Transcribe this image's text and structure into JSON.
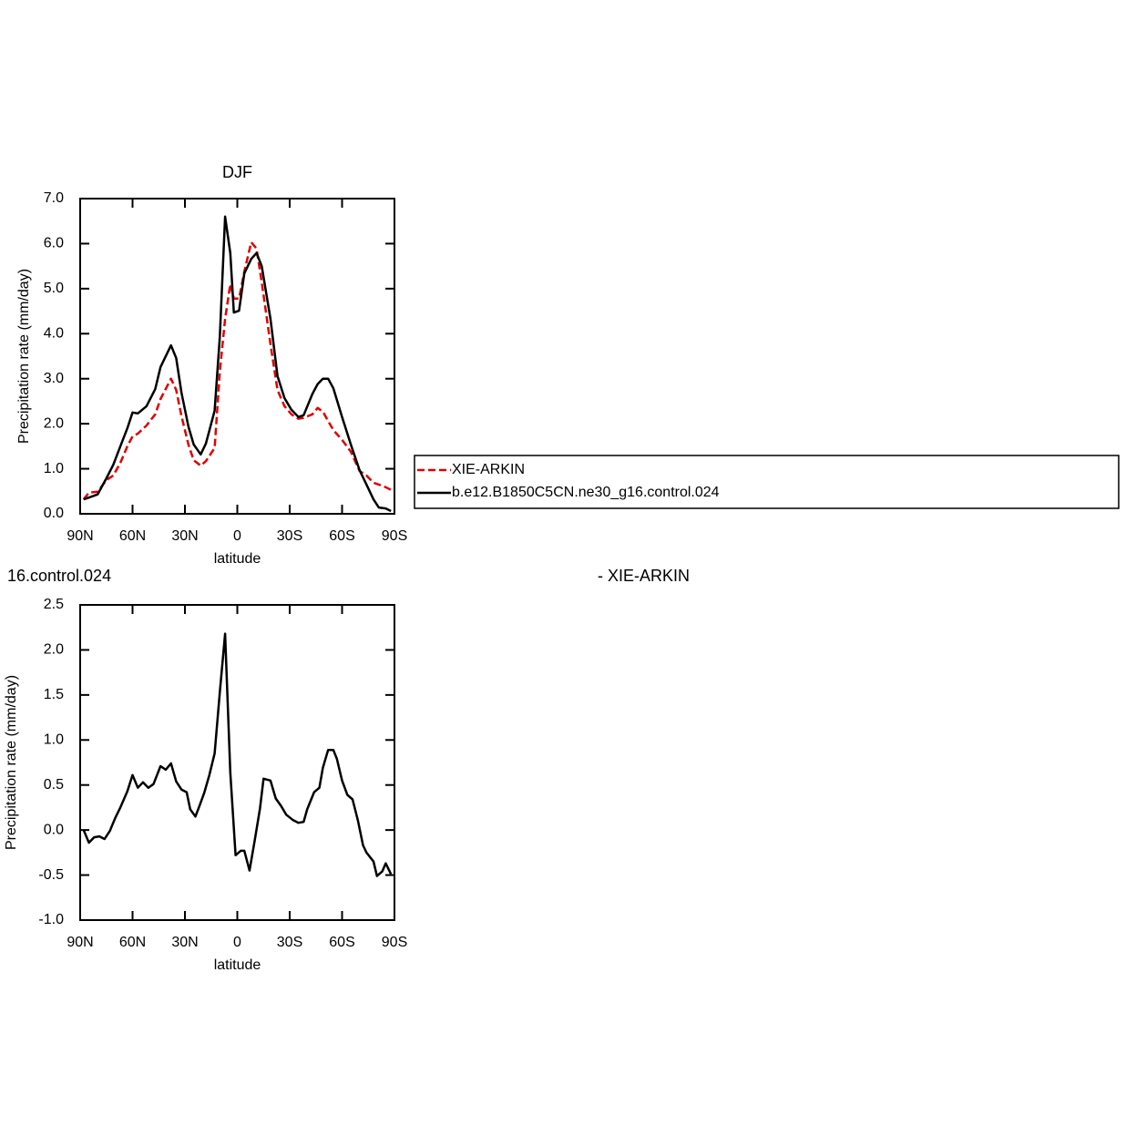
{
  "chart_data": [
    {
      "type": "line",
      "title": "DJF",
      "xlabel": "latitude",
      "ylabel": "Precipitation rate (mm/day)",
      "x": [
        88,
        85,
        80,
        75,
        71,
        67,
        63,
        60,
        57,
        52,
        47,
        44,
        38,
        35,
        32,
        28,
        25,
        21,
        18,
        13,
        10,
        7,
        4,
        2,
        -1,
        -4,
        -8,
        -11,
        -14,
        -19,
        -23,
        -27,
        -31,
        -35,
        -38,
        -43,
        -46,
        -49,
        -52,
        -55,
        -60,
        -65,
        -70,
        -74,
        -78,
        -81,
        -85,
        -88
      ],
      "series": [
        {
          "name": "XIE-ARKIN",
          "color": "#e00000",
          "dash": true,
          "values": [
            0.32,
            0.47,
            0.49,
            0.75,
            0.85,
            1.13,
            1.5,
            1.72,
            1.78,
            1.96,
            2.21,
            2.55,
            3.0,
            2.75,
            2.17,
            1.54,
            1.19,
            1.07,
            1.17,
            1.46,
            3.16,
            4.33,
            5.1,
            4.78,
            4.78,
            5.38,
            6.03,
            5.89,
            5.14,
            3.77,
            2.75,
            2.39,
            2.21,
            2.11,
            2.13,
            2.21,
            2.35,
            2.27,
            2.06,
            1.86,
            1.64,
            1.38,
            0.95,
            0.85,
            0.69,
            0.65,
            0.59,
            0.53
          ]
        },
        {
          "name": "b.e12.B1850C5CN.ne30_g16.control.024",
          "color": "#000000",
          "dash": false,
          "values": [
            0.32,
            0.36,
            0.43,
            0.79,
            1.09,
            1.5,
            1.9,
            2.25,
            2.23,
            2.39,
            2.77,
            3.26,
            3.74,
            3.46,
            2.69,
            1.94,
            1.54,
            1.32,
            1.56,
            2.29,
            3.93,
            6.6,
            5.79,
            4.47,
            4.51,
            5.34,
            5.66,
            5.79,
            5.5,
            4.33,
            3.06,
            2.57,
            2.31,
            2.15,
            2.19,
            2.66,
            2.88,
            3.0,
            3.0,
            2.79,
            2.15,
            1.54,
            0.97,
            0.65,
            0.32,
            0.14,
            0.12,
            0.06
          ]
        }
      ],
      "xlim": [
        90,
        -90
      ],
      "xticks": [
        {
          "value": 90,
          "label": "90N"
        },
        {
          "value": 60,
          "label": "60N"
        },
        {
          "value": 30,
          "label": "30N"
        },
        0,
        {
          "value": -30,
          "label": "30S"
        },
        {
          "value": -60,
          "label": "60S"
        },
        {
          "value": -90,
          "label": "90S"
        }
      ],
      "ylim": [
        0,
        7
      ],
      "yticks": [
        {
          "value": 0,
          "label": "0.0"
        },
        {
          "value": 1,
          "label": "1.0"
        },
        {
          "value": 2,
          "label": "2.0"
        },
        {
          "value": 3,
          "label": "3.0"
        },
        {
          "value": 4,
          "label": "4.0"
        },
        {
          "value": 5,
          "label": "5.0"
        },
        {
          "value": 6,
          "label": "6.0"
        },
        {
          "value": 7,
          "label": "7.0"
        }
      ],
      "legend": "right"
    },
    {
      "type": "line",
      "title_parts": [
        "16.control.024",
        "- XIE-ARKIN"
      ],
      "xlabel": "latitude",
      "ylabel": "Precipitation rate (mm/day)",
      "x": [
        88,
        85,
        82,
        79,
        76,
        73,
        70,
        67,
        63,
        60,
        57,
        54,
        51,
        48,
        44,
        41,
        38,
        35,
        32,
        29,
        27,
        24,
        22,
        19,
        16,
        13,
        10,
        7,
        4,
        1,
        -2,
        -4,
        -7,
        -10,
        -13,
        -15,
        -19,
        -22,
        -25,
        -28,
        -32,
        -35,
        -38,
        -40,
        -44,
        -47,
        -49,
        -52,
        -55,
        -57,
        -60,
        -63,
        -66,
        -69,
        -72,
        -74,
        -78,
        -80,
        -83,
        -85,
        -88
      ],
      "series": [
        {
          "color": "#000000",
          "dash": false,
          "values": [
            0.0,
            -0.14,
            -0.08,
            -0.07,
            -0.1,
            -0.01,
            0.13,
            0.25,
            0.43,
            0.61,
            0.47,
            0.53,
            0.47,
            0.51,
            0.71,
            0.67,
            0.74,
            0.54,
            0.45,
            0.42,
            0.23,
            0.15,
            0.25,
            0.41,
            0.61,
            0.85,
            1.53,
            2.18,
            0.64,
            -0.28,
            -0.23,
            -0.23,
            -0.45,
            -0.11,
            0.24,
            0.57,
            0.55,
            0.35,
            0.27,
            0.17,
            0.11,
            0.08,
            0.09,
            0.23,
            0.42,
            0.47,
            0.69,
            0.89,
            0.89,
            0.79,
            0.55,
            0.39,
            0.34,
            0.11,
            -0.17,
            -0.25,
            -0.35,
            -0.51,
            -0.46,
            -0.37,
            -0.49
          ]
        }
      ],
      "xlim": [
        90,
        -90
      ],
      "xticks": [
        {
          "value": 90,
          "label": "90N"
        },
        {
          "value": 60,
          "label": "60N"
        },
        {
          "value": 30,
          "label": "30N"
        },
        0,
        {
          "value": -30,
          "label": "30S"
        },
        {
          "value": -60,
          "label": "60S"
        },
        {
          "value": -90,
          "label": "90S"
        }
      ],
      "ylim": [
        -1,
        2.5
      ],
      "yticks": [
        {
          "value": -1,
          "label": "-1.0"
        },
        -0.5,
        {
          "value": 0,
          "label": "0.0"
        },
        0.5,
        {
          "value": 1,
          "label": "1.0"
        },
        1.5,
        {
          "value": 2,
          "label": "2.0"
        },
        2.5
      ]
    }
  ]
}
